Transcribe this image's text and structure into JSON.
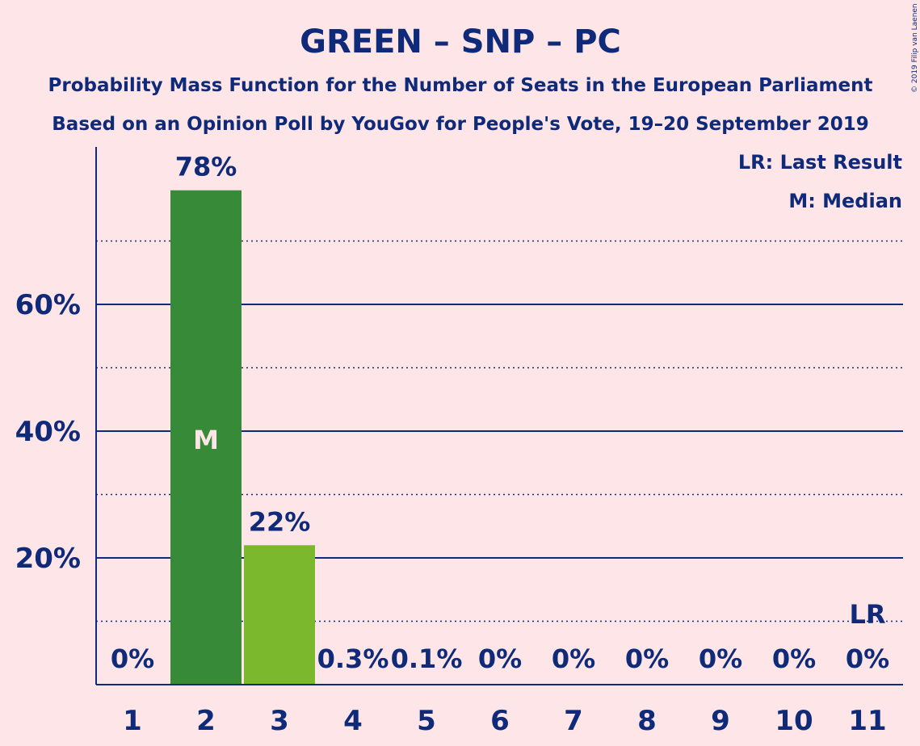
{
  "title": "GREEN – SNP – PC",
  "subtitle1": "Probability Mass Function for the Number of Seats in the European Parliament",
  "subtitle2": "Based on an Opinion Poll by YouGov for People's Vote, 19–20 September 2019",
  "copyright": "© 2019 Filip van Laenen",
  "legend": {
    "lr": "LR: Last Result",
    "m": "M: Median"
  },
  "colors": {
    "background": "#fde5e8",
    "text": "#0e2a78",
    "bar_median": "#378a37",
    "bar_other": "#7bb82d",
    "axis": "#0e2a78"
  },
  "chart_data": {
    "type": "bar",
    "categories": [
      "1",
      "2",
      "3",
      "4",
      "5",
      "6",
      "7",
      "8",
      "9",
      "10",
      "11"
    ],
    "values": [
      0,
      78,
      22,
      0.3,
      0.1,
      0,
      0,
      0,
      0,
      0,
      0
    ],
    "labels": [
      "0%",
      "78%",
      "22%",
      "0.3%",
      "0.1%",
      "0%",
      "0%",
      "0%",
      "0%",
      "0%",
      "0%"
    ],
    "yticks": [
      20,
      40,
      60
    ],
    "ytick_labels": [
      "20%",
      "40%",
      "60%"
    ],
    "minor_gridlines": [
      10,
      30,
      50,
      70
    ],
    "ylim": [
      0,
      85
    ],
    "median_index": 1,
    "median_label": "M",
    "last_result_index": 10,
    "last_result_label": "LR",
    "legend_position": "top-right"
  }
}
